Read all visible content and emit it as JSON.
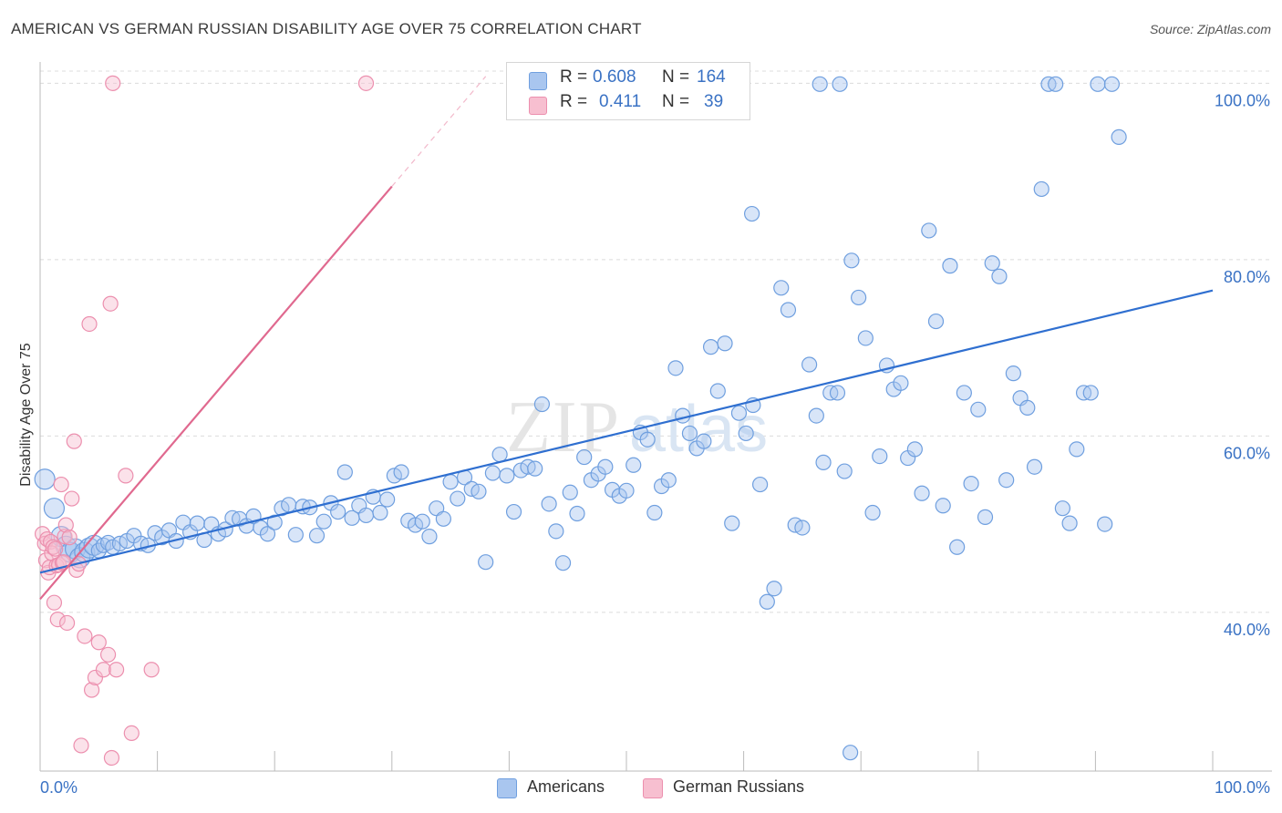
{
  "title": "AMERICAN VS GERMAN RUSSIAN DISABILITY AGE OVER 75 CORRELATION CHART",
  "source": "Source: ZipAtlas.com",
  "watermark": {
    "zip": "ZIP",
    "atlas": "atlas"
  },
  "legend_top": {
    "rows": [
      {
        "r_label": "R =",
        "r_value": "0.608",
        "n_label": "N =",
        "n_value": "164",
        "color": "#a9c6ef",
        "stroke": "#6f9fdf"
      },
      {
        "r_label": "R =",
        "r_value": "0.411",
        "n_label": "N =",
        "n_value": "39",
        "color": "#f7bfd0",
        "stroke": "#ec8fae"
      }
    ]
  },
  "legend_bottom": [
    {
      "label": "Americans",
      "color": "#a9c6ef",
      "stroke": "#6f9fdf"
    },
    {
      "label": "German Russians",
      "color": "#f7bfd0",
      "stroke": "#ec8fae"
    }
  ],
  "chart_data": {
    "type": "scatter",
    "title": "AMERICAN VS GERMAN RUSSIAN DISABILITY AGE OVER 75 CORRELATION CHART",
    "xlabel": "",
    "ylabel": "Disability Age Over 75",
    "xlim": [
      0,
      100
    ],
    "ylim": [
      22,
      102
    ],
    "x_tick_labels": [
      "0.0%",
      "100.0%"
    ],
    "y_ticks": [
      40,
      60,
      80,
      100
    ],
    "y_tick_labels": [
      "40.0%",
      "60.0%",
      "80.0%",
      "100.0%"
    ],
    "grid": true,
    "legend_position": "bottom-center",
    "series": [
      {
        "name": "Americans",
        "color": "#6f9fdf",
        "fill": "#a9c6ef",
        "r": 0.608,
        "n": 164,
        "trend": {
          "x0": 0,
          "y0": 44.5,
          "x1": 100,
          "y1": 76.5,
          "dash_to_x": 100
        },
        "points": [
          [
            0.4,
            55.1
          ],
          [
            1.2,
            51.8
          ],
          [
            1.8,
            48.6
          ],
          [
            2.2,
            47.5
          ],
          [
            2.6,
            46.8
          ],
          [
            3.0,
            47.2
          ],
          [
            3.4,
            46.2
          ],
          [
            3.8,
            46.8
          ],
          [
            4.2,
            47.3
          ],
          [
            4.6,
            47.6
          ],
          [
            5.0,
            47.0
          ],
          [
            5.4,
            47.6
          ],
          [
            5.8,
            47.9
          ],
          [
            6.2,
            47.4
          ],
          [
            6.8,
            47.8
          ],
          [
            7.4,
            48.1
          ],
          [
            8.0,
            48.7
          ],
          [
            8.6,
            47.8
          ],
          [
            9.2,
            47.6
          ],
          [
            9.8,
            49.0
          ],
          [
            10.4,
            48.5
          ],
          [
            11.0,
            49.3
          ],
          [
            11.6,
            48.1
          ],
          [
            12.2,
            50.2
          ],
          [
            12.8,
            49.1
          ],
          [
            13.4,
            50.1
          ],
          [
            14.0,
            48.2
          ],
          [
            14.6,
            50.0
          ],
          [
            15.2,
            48.9
          ],
          [
            15.8,
            49.4
          ],
          [
            16.4,
            50.7
          ],
          [
            17.0,
            50.6
          ],
          [
            17.6,
            49.8
          ],
          [
            18.2,
            50.9
          ],
          [
            18.8,
            49.6
          ],
          [
            19.4,
            48.9
          ],
          [
            20.0,
            50.2
          ],
          [
            20.6,
            51.8
          ],
          [
            21.2,
            52.2
          ],
          [
            21.8,
            48.8
          ],
          [
            22.4,
            52.0
          ],
          [
            23.0,
            51.9
          ],
          [
            23.6,
            48.7
          ],
          [
            24.2,
            50.3
          ],
          [
            24.8,
            52.4
          ],
          [
            25.4,
            51.4
          ],
          [
            26.0,
            55.9
          ],
          [
            26.6,
            50.7
          ],
          [
            27.2,
            52.1
          ],
          [
            27.8,
            51.0
          ],
          [
            28.4,
            53.1
          ],
          [
            29.0,
            51.3
          ],
          [
            29.6,
            52.8
          ],
          [
            30.2,
            55.5
          ],
          [
            30.8,
            55.9
          ],
          [
            31.4,
            50.4
          ],
          [
            32.0,
            49.9
          ],
          [
            32.6,
            50.3
          ],
          [
            33.2,
            48.6
          ],
          [
            33.8,
            51.8
          ],
          [
            34.4,
            50.6
          ],
          [
            35.0,
            54.8
          ],
          [
            35.6,
            52.9
          ],
          [
            36.2,
            55.3
          ],
          [
            36.8,
            54.0
          ],
          [
            37.4,
            53.7
          ],
          [
            38.0,
            45.7
          ],
          [
            38.6,
            55.8
          ],
          [
            39.2,
            57.9
          ],
          [
            39.8,
            55.5
          ],
          [
            40.4,
            51.4
          ],
          [
            41.0,
            56.1
          ],
          [
            41.6,
            56.5
          ],
          [
            42.2,
            56.3
          ],
          [
            42.8,
            63.6
          ],
          [
            43.4,
            52.3
          ],
          [
            44.0,
            49.2
          ],
          [
            44.6,
            45.6
          ],
          [
            45.2,
            53.6
          ],
          [
            45.8,
            51.2
          ],
          [
            46.4,
            57.6
          ],
          [
            47.0,
            55.0
          ],
          [
            47.6,
            55.7
          ],
          [
            48.2,
            56.5
          ],
          [
            48.8,
            53.9
          ],
          [
            49.4,
            53.2
          ],
          [
            50.0,
            53.8
          ],
          [
            50.6,
            56.7
          ],
          [
            51.2,
            60.4
          ],
          [
            51.8,
            59.6
          ],
          [
            52.4,
            51.3
          ],
          [
            53.0,
            54.3
          ],
          [
            53.6,
            55.0
          ],
          [
            54.2,
            67.7
          ],
          [
            54.8,
            62.3
          ],
          [
            55.4,
            60.3
          ],
          [
            56.0,
            58.6
          ],
          [
            56.6,
            59.4
          ],
          [
            57.2,
            70.1
          ],
          [
            57.8,
            65.1
          ],
          [
            58.4,
            70.5
          ],
          [
            59.0,
            50.1
          ],
          [
            59.6,
            62.6
          ],
          [
            60.2,
            60.3
          ],
          [
            60.8,
            63.5
          ],
          [
            61.4,
            54.5
          ],
          [
            62.0,
            41.2
          ],
          [
            62.6,
            42.7
          ],
          [
            63.2,
            76.8
          ],
          [
            63.8,
            74.3
          ],
          [
            64.4,
            49.9
          ],
          [
            65.0,
            49.6
          ],
          [
            65.6,
            68.1
          ],
          [
            66.2,
            62.3
          ],
          [
            66.8,
            57.0
          ],
          [
            67.4,
            64.9
          ],
          [
            68.0,
            64.9
          ],
          [
            68.6,
            56.0
          ],
          [
            69.2,
            79.9
          ],
          [
            69.8,
            75.7
          ],
          [
            70.4,
            71.1
          ],
          [
            71.0,
            51.3
          ],
          [
            71.6,
            57.7
          ],
          [
            72.2,
            68.0
          ],
          [
            72.8,
            65.3
          ],
          [
            73.4,
            66.0
          ],
          [
            74.0,
            57.5
          ],
          [
            74.6,
            58.5
          ],
          [
            75.2,
            53.5
          ],
          [
            75.8,
            83.3
          ],
          [
            76.4,
            73.0
          ],
          [
            77.0,
            52.1
          ],
          [
            77.6,
            79.3
          ],
          [
            78.2,
            47.4
          ],
          [
            78.8,
            64.9
          ],
          [
            79.4,
            54.6
          ],
          [
            80.0,
            63.0
          ],
          [
            80.6,
            50.8
          ],
          [
            81.2,
            79.6
          ],
          [
            81.8,
            78.1
          ],
          [
            82.4,
            55.0
          ],
          [
            83.0,
            67.1
          ],
          [
            83.6,
            64.3
          ],
          [
            84.2,
            63.2
          ],
          [
            84.8,
            56.5
          ],
          [
            85.4,
            88.0
          ],
          [
            86.0,
            99.9
          ],
          [
            86.6,
            99.9
          ],
          [
            87.2,
            51.8
          ],
          [
            87.8,
            50.1
          ],
          [
            88.4,
            58.5
          ],
          [
            89.0,
            64.9
          ],
          [
            89.6,
            64.9
          ],
          [
            90.2,
            99.9
          ],
          [
            90.8,
            50.0
          ],
          [
            91.4,
            99.9
          ],
          [
            92.0,
            93.9
          ],
          [
            60.7,
            85.2
          ],
          [
            66.5,
            99.9
          ],
          [
            68.2,
            99.9
          ],
          [
            69.1,
            24.1
          ]
        ]
      },
      {
        "name": "German Russians",
        "color": "#ec8fae",
        "fill": "#f7bfd0",
        "r": 0.411,
        "n": 39,
        "trend": {
          "x0": 0,
          "y0": 41.5,
          "x1": 30,
          "y1": 88.3,
          "dash_to_x": 38
        },
        "points": [
          [
            0.2,
            48.9
          ],
          [
            0.4,
            47.8
          ],
          [
            0.5,
            45.9
          ],
          [
            0.6,
            48.3
          ],
          [
            0.7,
            44.5
          ],
          [
            0.8,
            45.1
          ],
          [
            0.9,
            48.0
          ],
          [
            1.0,
            46.7
          ],
          [
            1.1,
            47.4
          ],
          [
            1.2,
            41.1
          ],
          [
            1.3,
            47.2
          ],
          [
            1.4,
            45.3
          ],
          [
            1.5,
            39.2
          ],
          [
            1.6,
            45.4
          ],
          [
            1.8,
            54.5
          ],
          [
            1.9,
            45.6
          ],
          [
            2.0,
            45.7
          ],
          [
            2.1,
            48.6
          ],
          [
            2.2,
            49.9
          ],
          [
            2.3,
            38.8
          ],
          [
            2.5,
            48.5
          ],
          [
            2.7,
            52.9
          ],
          [
            2.9,
            59.4
          ],
          [
            3.1,
            44.8
          ],
          [
            3.3,
            45.5
          ],
          [
            3.5,
            24.9
          ],
          [
            3.8,
            37.3
          ],
          [
            4.2,
            72.7
          ],
          [
            4.4,
            31.2
          ],
          [
            4.7,
            32.6
          ],
          [
            5.0,
            36.6
          ],
          [
            5.4,
            33.5
          ],
          [
            5.8,
            35.2
          ],
          [
            6.0,
            75.0
          ],
          [
            6.1,
            23.5
          ],
          [
            6.5,
            33.5
          ],
          [
            7.3,
            55.5
          ],
          [
            7.8,
            26.3
          ],
          [
            9.5,
            33.5
          ],
          [
            6.2,
            100.0
          ],
          [
            27.8,
            100.0
          ]
        ]
      }
    ]
  }
}
